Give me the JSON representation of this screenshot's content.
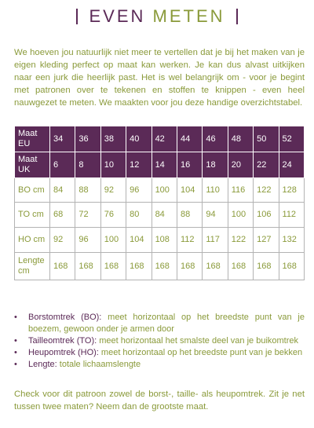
{
  "heading": {
    "word1": "EVEN",
    "word2": "METEN"
  },
  "intro": "We hoeven jou natuurlijk niet meer te vertellen dat je bij het maken van je eigen kleding perfect op maat kan werken. Je kan dus alvast uitkijken naar een jurk die heerlijk past. Het is wel belangrijk om - voor je begint met patronen over te tekenen en stoffen te knippen - even heel nauwgezet te meten. We maakten voor jou deze handige overzichtstabel.",
  "table": {
    "rows": [
      {
        "label": "Maat EU",
        "values": [
          "34",
          "36",
          "38",
          "40",
          "42",
          "44",
          "46",
          "48",
          "50",
          "52"
        ]
      },
      {
        "label": "Maat UK",
        "values": [
          "6",
          "8",
          "10",
          "12",
          "14",
          "16",
          "18",
          "20",
          "22",
          "24"
        ]
      },
      {
        "label": "BO cm",
        "values": [
          "84",
          "88",
          "92",
          "96",
          "100",
          "104",
          "110",
          "116",
          "122",
          "128"
        ]
      },
      {
        "label": "TO cm",
        "values": [
          "68",
          "72",
          "76",
          "80",
          "84",
          "88",
          "94",
          "100",
          "106",
          "112"
        ]
      },
      {
        "label": "HO cm",
        "values": [
          "92",
          "96",
          "100",
          "104",
          "108",
          "112",
          "117",
          "122",
          "127",
          "132"
        ]
      },
      {
        "label": "Lengte cm",
        "values": [
          "168",
          "168",
          "168",
          "168",
          "168",
          "168",
          "168",
          "168",
          "168",
          "168"
        ]
      }
    ]
  },
  "legend": [
    {
      "term": "Borstomtrek (BO):",
      "text": "meet horizontaal op het breedste punt van je boezem, gewoon onder je armen door"
    },
    {
      "term": "Tailleomtrek (TO):",
      "text": "meet horizontaal het smalste deel van je buikomtrek"
    },
    {
      "term": "Heupomtrek (HO):",
      "text": "meet horizontaal op het breedste punt van je bekken"
    },
    {
      "term": "Lengte:",
      "text": "totale lichaamslengte"
    }
  ],
  "closing": "Check voor dit patroon zowel de borst-, taille- als heupomtrek. Zit je net tussen twee maten? Neem dan de grootste maat."
}
